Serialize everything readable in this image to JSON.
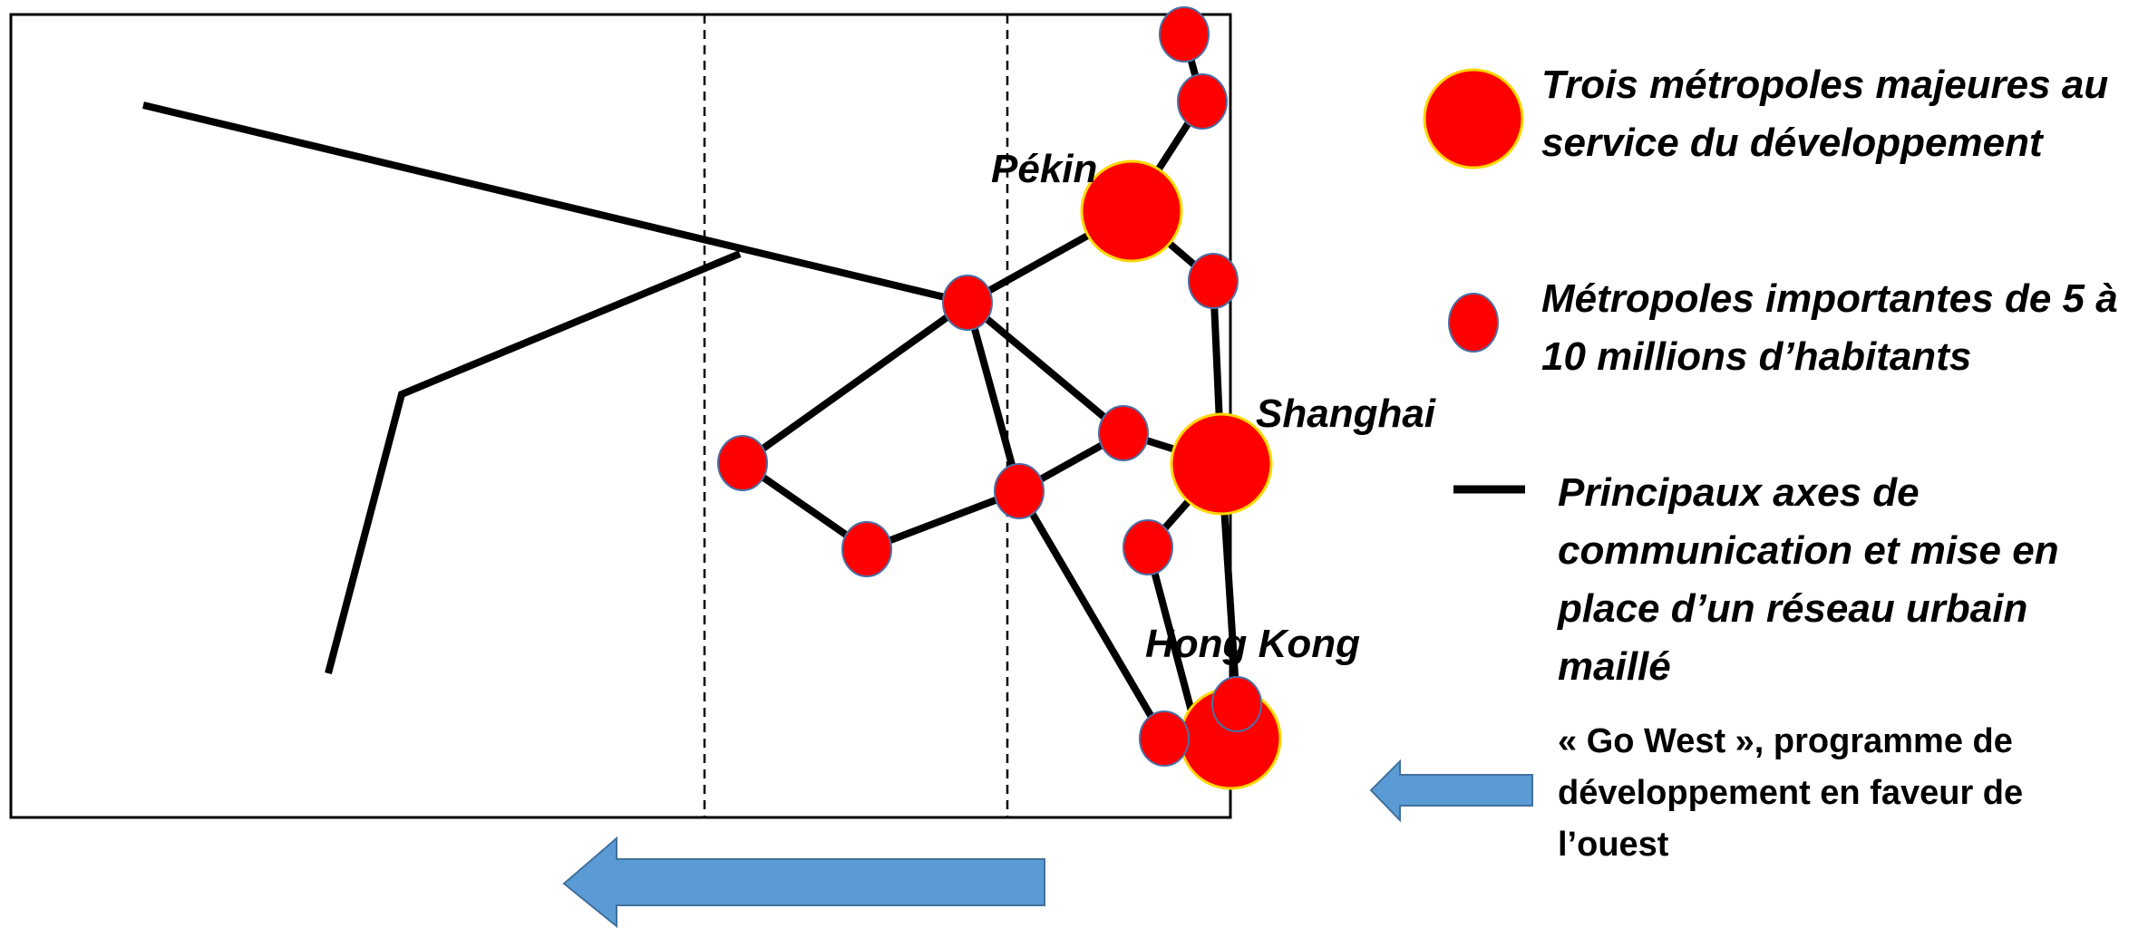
{
  "legend": {
    "major_metropolises": "Trois métropoles majeures au service du développement",
    "important_metropolises": "Métropoles importantes de 5 à 10 millions d’habitants",
    "communication_axes": "Principaux axes de communication et mise en place d’un réseau urbain maillé",
    "go_west": "« Go West », programme de développement en faveur de l’ouest"
  },
  "cities": {
    "beijing": "Pékin",
    "shanghai": "Shanghai",
    "hong_kong": "Hong Kong"
  },
  "colors": {
    "metropolis_fill": "#ff0000",
    "major_outline": "#ffd700",
    "minor_outline": "#4a6fa5",
    "axis_line": "#000000",
    "arrow_fill": "#5b9bd5",
    "arrow_outline": "#41719c"
  }
}
